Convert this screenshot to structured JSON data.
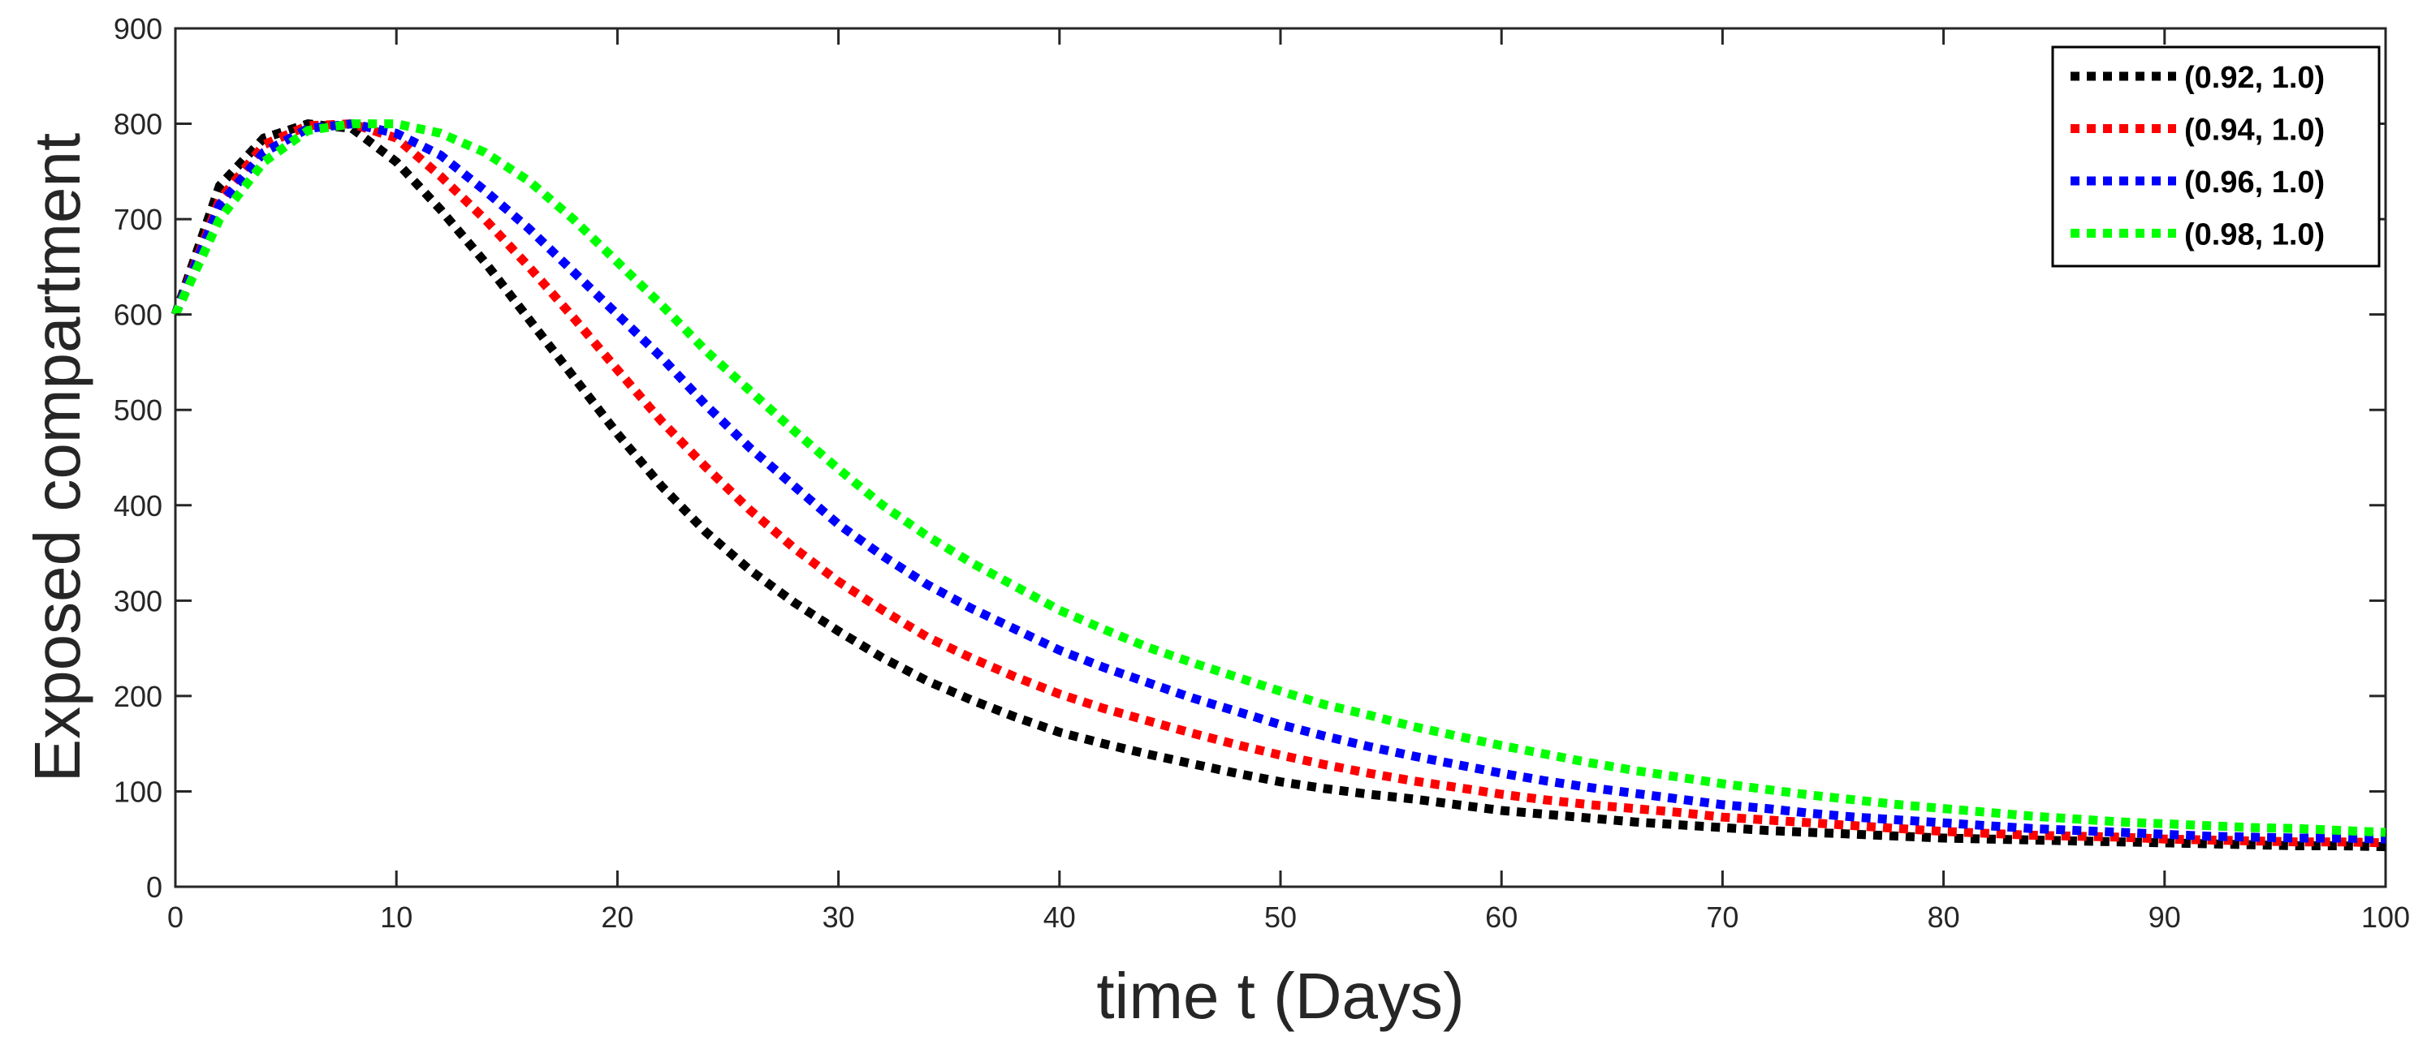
{
  "chart_data": {
    "type": "line",
    "title": "",
    "xlabel": "time t (Days)",
    "ylabel": "Exposed compartment",
    "xlim": [
      0,
      100
    ],
    "ylim": [
      0,
      900
    ],
    "xticks": [
      0,
      10,
      20,
      30,
      40,
      50,
      60,
      70,
      80,
      90,
      100
    ],
    "yticks": [
      0,
      100,
      200,
      300,
      400,
      500,
      600,
      700,
      800,
      900
    ],
    "grid": false,
    "legend_position": "top-right",
    "line_style": "dotted",
    "x": [
      0,
      2,
      4,
      6,
      8,
      10,
      12,
      14,
      16,
      18,
      20,
      22,
      24,
      26,
      28,
      30,
      32,
      34,
      36,
      38,
      40,
      42,
      44,
      46,
      48,
      50,
      52,
      54,
      56,
      58,
      60,
      62,
      64,
      66,
      68,
      70,
      72,
      74,
      76,
      78,
      80,
      82,
      84,
      86,
      88,
      90,
      92,
      94,
      96,
      98,
      100
    ],
    "series": [
      {
        "name": "(0.92, 1.0)",
        "color": "#000000",
        "values": [
          600,
          735,
          785,
          800,
          795,
          760,
          710,
          655,
          595,
          535,
          475,
          420,
          372,
          332,
          298,
          268,
          240,
          216,
          196,
          178,
          162,
          150,
          139,
          129,
          119,
          110,
          103,
          97,
          92,
          86,
          80,
          76,
          72,
          68,
          65,
          62,
          59,
          57,
          55,
          53,
          51,
          50,
          49,
          48,
          47,
          46,
          45,
          44,
          43,
          43,
          42
        ]
      },
      {
        "name": "(0.94, 1.0)",
        "color": "#ff0000",
        "values": [
          600,
          720,
          778,
          798,
          800,
          785,
          745,
          700,
          650,
          597,
          542,
          488,
          440,
          395,
          355,
          320,
          290,
          262,
          240,
          220,
          202,
          187,
          174,
          161,
          149,
          138,
          128,
          119,
          111,
          104,
          97,
          91,
          86,
          82,
          78,
          73,
          70,
          67,
          64,
          61,
          58,
          56,
          54,
          53,
          52,
          50,
          49,
          48,
          47,
          47,
          46
        ]
      },
      {
        "name": "(0.96, 1.0)",
        "color": "#0000ff",
        "values": [
          600,
          715,
          770,
          795,
          800,
          790,
          767,
          730,
          690,
          645,
          600,
          555,
          505,
          460,
          420,
          380,
          347,
          317,
          292,
          270,
          248,
          230,
          214,
          198,
          184,
          170,
          158,
          147,
          137,
          128,
          119,
          111,
          104,
          98,
          92,
          86,
          82,
          77,
          73,
          70,
          67,
          64,
          61,
          59,
          57,
          55,
          53,
          52,
          51,
          51,
          50
        ]
      },
      {
        "name": "(0.98, 1.0)",
        "color": "#00ff00",
        "values": [
          600,
          700,
          760,
          793,
          800,
          800,
          790,
          770,
          740,
          700,
          655,
          610,
          562,
          520,
          478,
          438,
          400,
          368,
          340,
          315,
          290,
          270,
          251,
          235,
          220,
          205,
          191,
          180,
          168,
          158,
          148,
          139,
          130,
          122,
          115,
          108,
          102,
          96,
          91,
          86,
          82,
          78,
          74,
          71,
          68,
          66,
          64,
          62,
          61,
          59,
          57
        ]
      }
    ]
  }
}
